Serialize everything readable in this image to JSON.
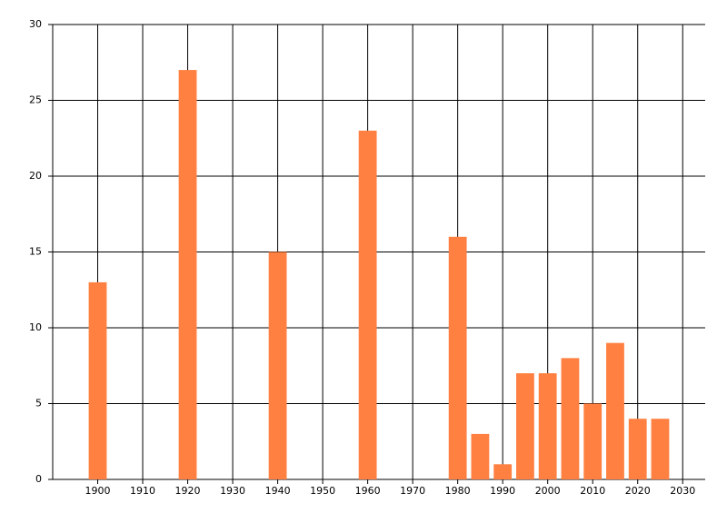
{
  "chart_data": {
    "type": "bar",
    "x": [
      1900,
      1920,
      1940,
      1960,
      1980,
      1985,
      1990,
      1995,
      2000,
      2005,
      2010,
      2015,
      2020,
      2025
    ],
    "values": [
      13,
      27,
      15,
      23,
      16,
      3,
      1,
      7,
      7,
      8,
      5,
      9,
      4,
      4
    ],
    "color": "#ff8040",
    "xlim": [
      1890,
      2035
    ],
    "xticks": [
      1900,
      1910,
      1920,
      1930,
      1940,
      1950,
      1960,
      1970,
      1980,
      1990,
      2000,
      2010,
      2020,
      2030
    ],
    "ylim": [
      0,
      30
    ],
    "yticks": [
      0,
      5,
      10,
      15,
      20,
      25,
      30
    ],
    "grid": true
  }
}
